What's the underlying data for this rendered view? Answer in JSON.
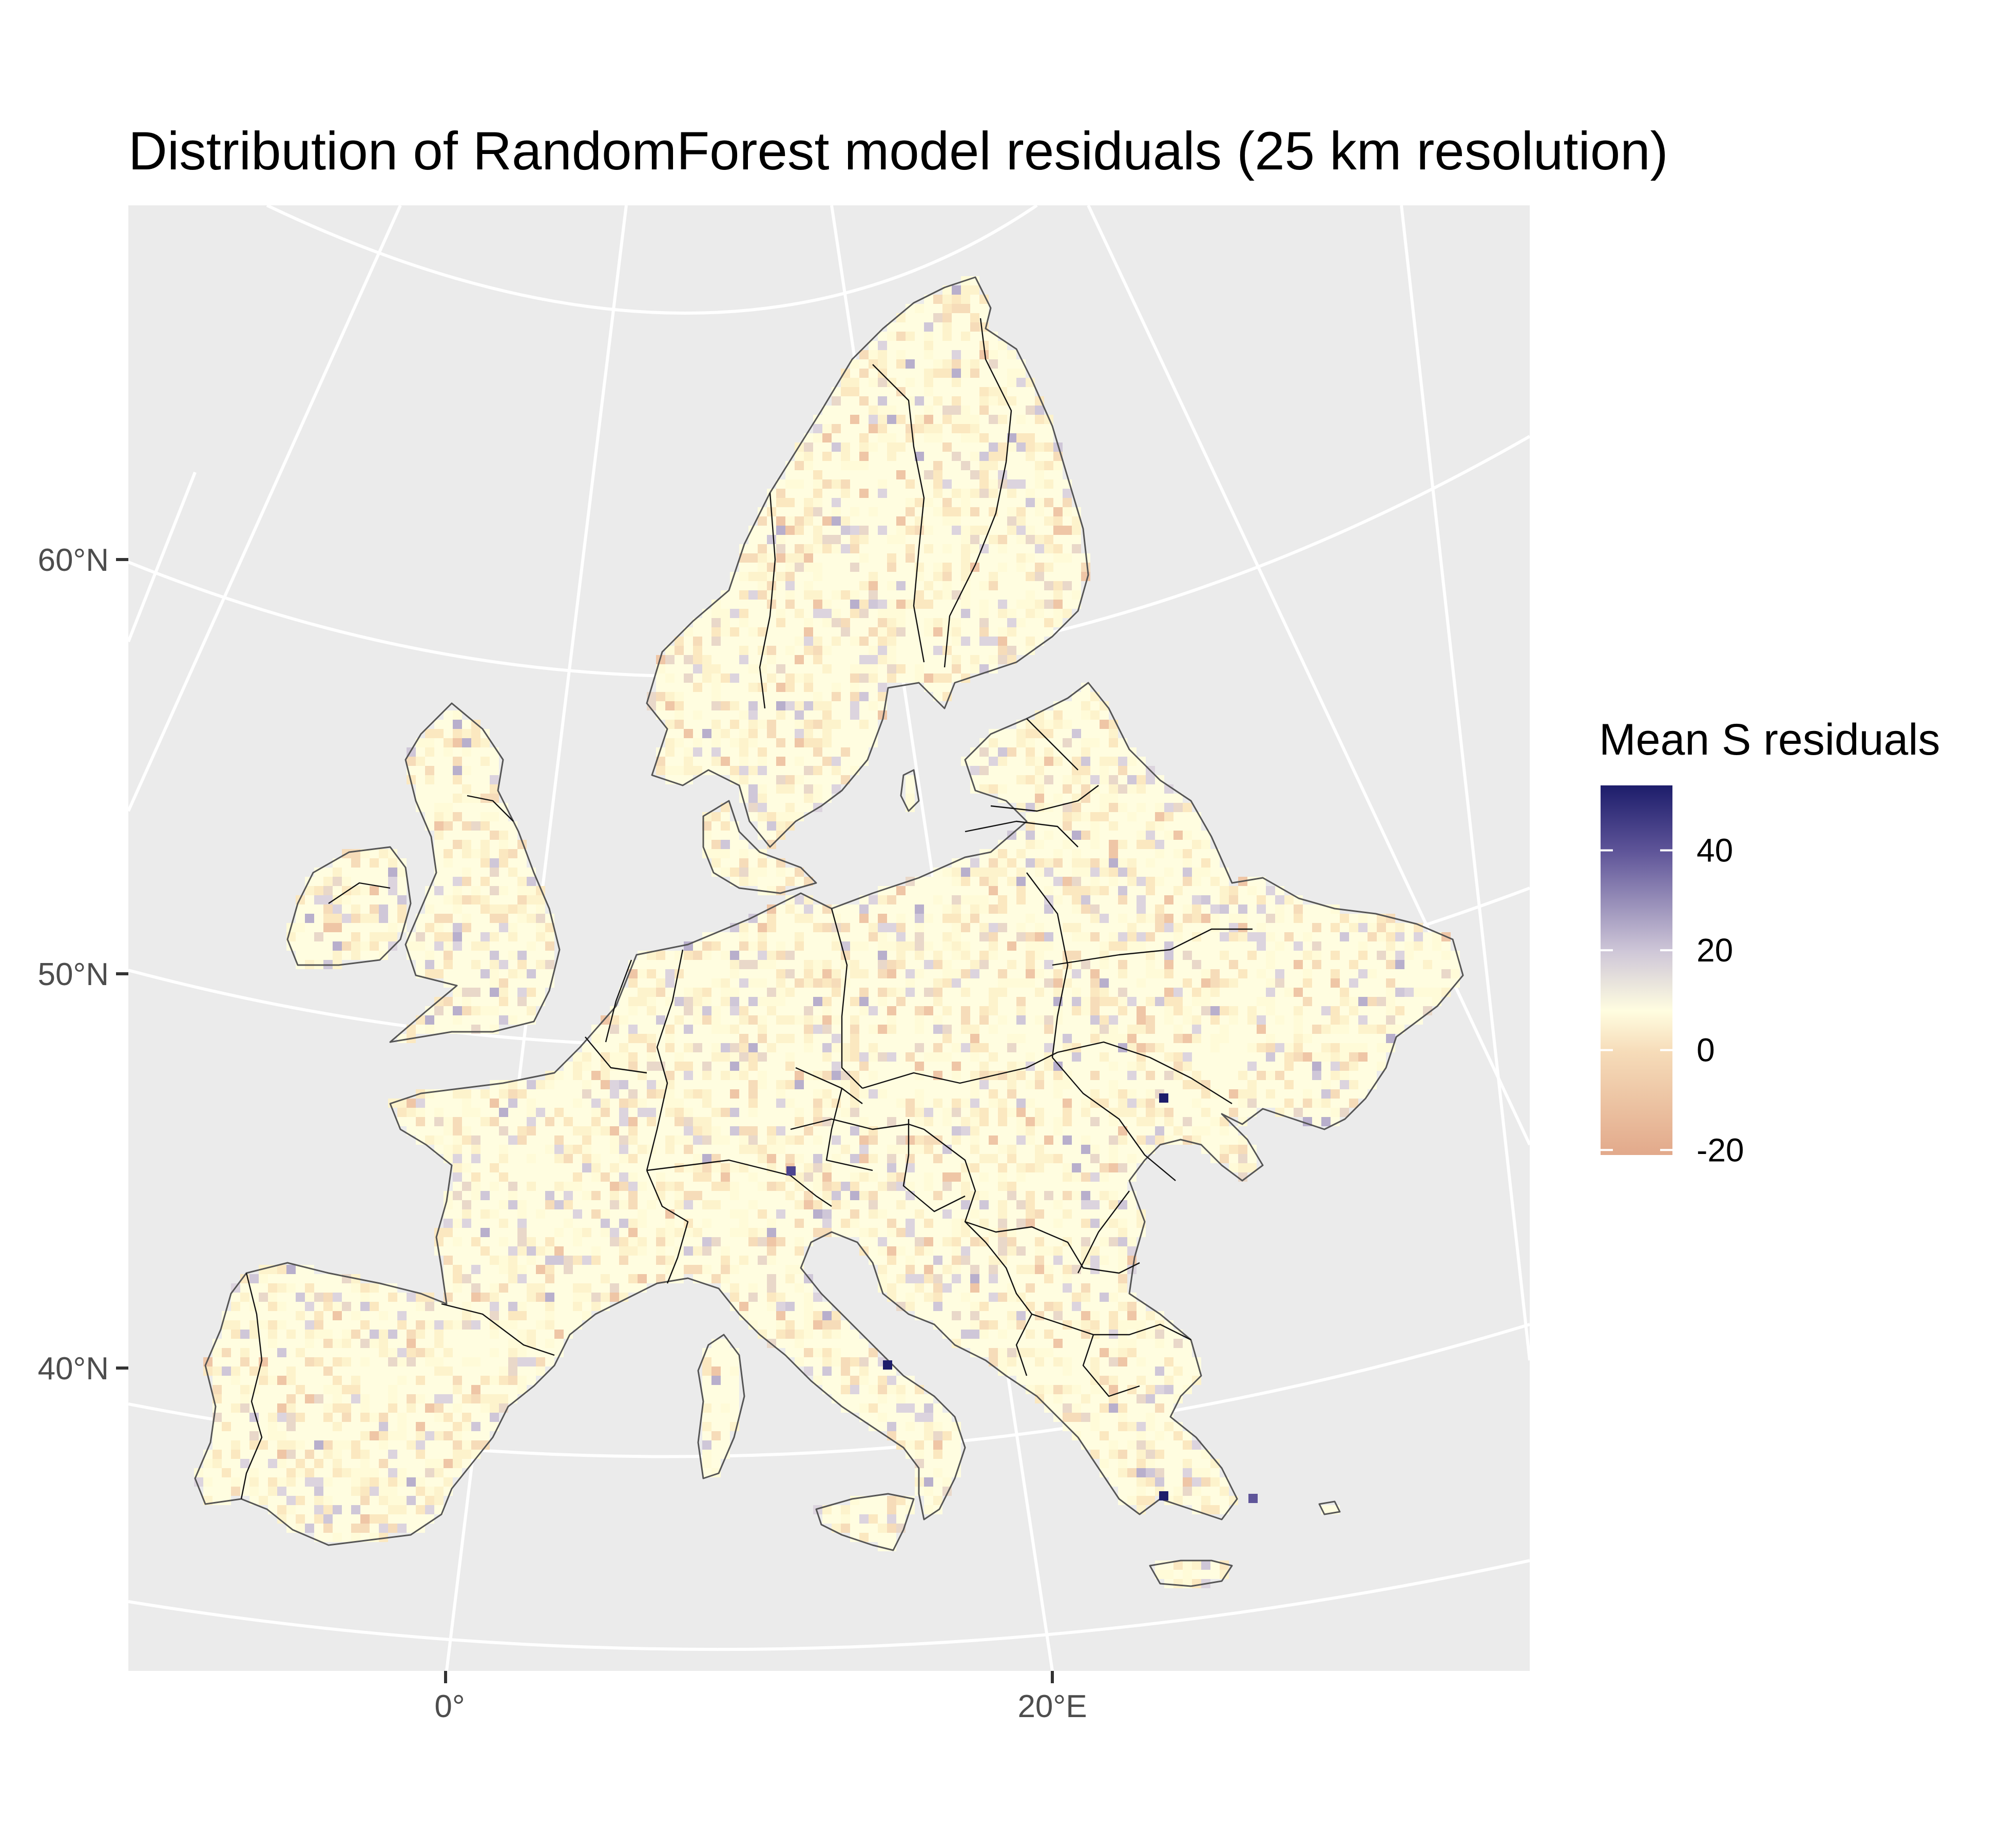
{
  "title": "Distribution of RandomForest model residuals (25 km resolution)",
  "y_axis": {
    "ticks": [
      {
        "label": "60°N",
        "value": 60
      },
      {
        "label": "50°N",
        "value": 50
      },
      {
        "label": "40°N",
        "value": 40
      }
    ]
  },
  "x_axis": {
    "ticks": [
      {
        "label": "0°",
        "value": 0
      },
      {
        "label": "20°E",
        "value": 20
      }
    ]
  },
  "legend": {
    "title": "Mean S residuals",
    "labels": [
      {
        "label": "40",
        "value": 40
      },
      {
        "label": "20",
        "value": 20
      },
      {
        "label": "0",
        "value": 0
      },
      {
        "label": "-20",
        "value": -20
      }
    ],
    "range": [
      -21,
      53
    ],
    "colors": {
      "low": "#e2a98b",
      "mid_low": "#f6dcb9",
      "mid": "#fffde0",
      "mid_high": "#cfc7d8",
      "high_mid": "#5f5599",
      "high": "#1d1d6b"
    }
  },
  "colors": {
    "panel_background": "#ebebeb",
    "graticule": "#ffffff",
    "coastline": "#555555",
    "country_border": "#111111"
  },
  "chart_data": {
    "type": "heatmap",
    "title": "Distribution of RandomForest model residuals (25 km resolution)",
    "legend_title": "Mean S residuals",
    "value_range": [
      -21,
      53
    ],
    "y_ticks": [
      "60°N",
      "50°N",
      "40°N"
    ],
    "x_ticks": [
      "0°",
      "20°E"
    ],
    "grid": true,
    "legend_position": "right",
    "notable_cells": [
      {
        "location": "Moldova/Romania border",
        "value": 53
      },
      {
        "location": "Southern Italy, Campania",
        "value": 52
      },
      {
        "location": "Aegean, Greece",
        "value": 50
      },
      {
        "location": "Northern Italy",
        "value": 35
      },
      {
        "location": "Dodecanese, Greece",
        "value": 32
      }
    ]
  }
}
